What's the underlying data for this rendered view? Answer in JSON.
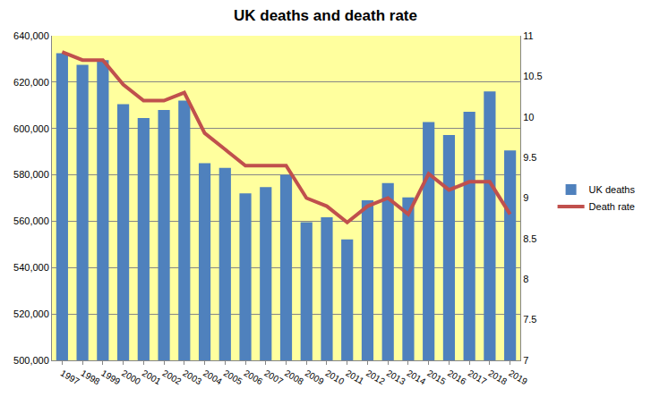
{
  "chart_data": {
    "type": "bar",
    "title": "UK deaths and death rate",
    "categories": [
      "1997",
      "1998",
      "1999",
      "2000",
      "2001",
      "2002",
      "2003",
      "2004",
      "2005",
      "2006",
      "2007",
      "2008",
      "2009",
      "2010",
      "2011",
      "2012",
      "2013",
      "2014",
      "2015",
      "2016",
      "2017",
      "2018",
      "2019"
    ],
    "series": [
      {
        "name": "UK deaths",
        "type": "bar",
        "color": "#4f81bd",
        "values": [
          632500,
          627500,
          629500,
          610500,
          604500,
          608000,
          612000,
          585000,
          583000,
          572000,
          574700,
          580000,
          559600,
          561700,
          552200,
          569000,
          576500,
          570300,
          602800,
          597200,
          607200,
          616000,
          590500
        ]
      },
      {
        "name": "Death rate",
        "type": "line",
        "color": "#c0504d",
        "axis": "y2",
        "line_style": "solid",
        "values": [
          10.8,
          10.7,
          10.7,
          10.4,
          10.2,
          10.2,
          10.3,
          9.8,
          9.6,
          9.4,
          9.4,
          9.4,
          9.0,
          8.9,
          8.7,
          8.9,
          9.0,
          8.8,
          9.3,
          9.1,
          9.2,
          9.2,
          8.8
        ]
      }
    ],
    "ylim": [
      500000,
      640000
    ],
    "yticks": [
      {
        "value": 500000,
        "label": "500,000"
      },
      {
        "value": 520000,
        "label": "520,000"
      },
      {
        "value": 540000,
        "label": "540,000"
      },
      {
        "value": 560000,
        "label": "560,000"
      },
      {
        "value": 580000,
        "label": "580,000"
      },
      {
        "value": 600000,
        "label": "600,000"
      },
      {
        "value": 620000,
        "label": "620,000"
      },
      {
        "value": 640000,
        "label": "640,000"
      }
    ],
    "y2lim": [
      7,
      11
    ],
    "y2ticks": [
      7,
      7.5,
      8,
      8.5,
      9,
      9.5,
      10,
      10.5,
      11
    ],
    "grid": true,
    "legend": "right"
  }
}
